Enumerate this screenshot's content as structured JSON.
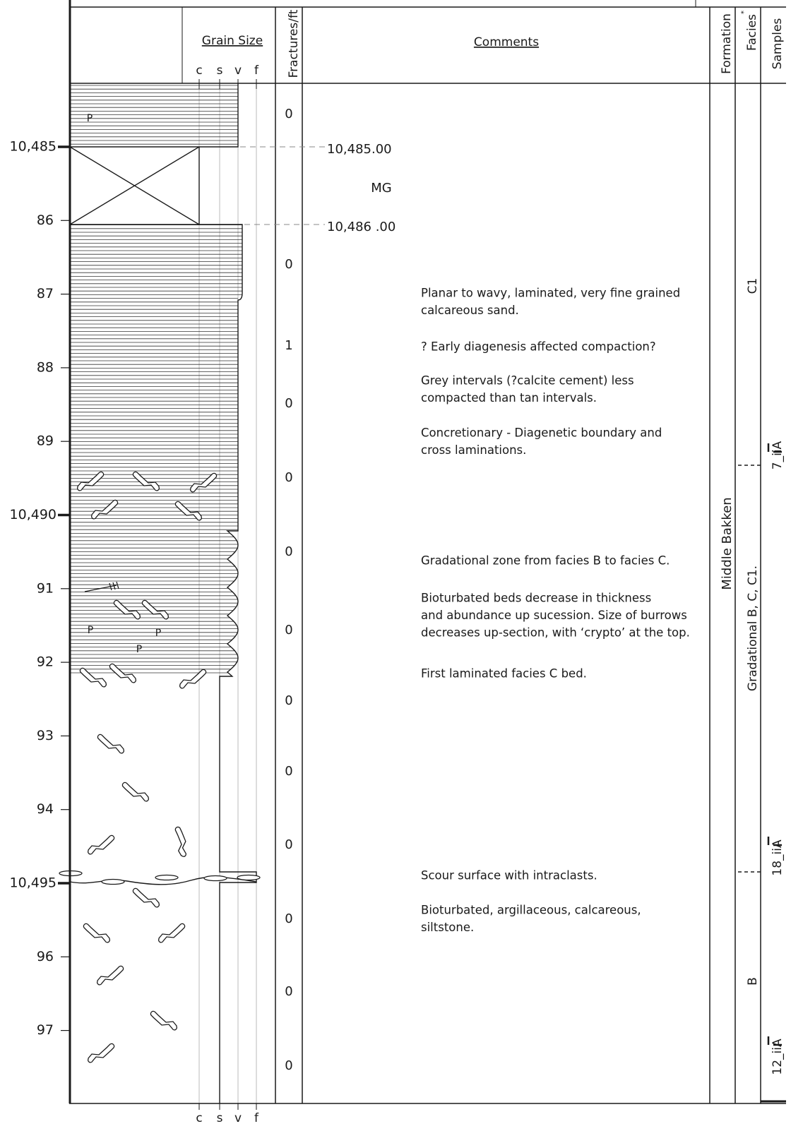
{
  "header": {
    "grain_size": "Grain Size",
    "grain_classes": [
      "c",
      "s",
      "v",
      "f"
    ],
    "fractures": "Fractures/ft",
    "comments": "Comments",
    "formation": "Formation",
    "facies": "Facies",
    "facies_mark": "*",
    "samples": "Samples"
  },
  "depth_labels": [
    "10,485",
    "86",
    "87",
    "88",
    "89",
    "10,490",
    "91",
    "92",
    "93",
    "94",
    "10,495",
    "96",
    "97"
  ],
  "fractures": [
    0,
    0,
    1,
    0,
    0,
    0,
    0,
    0,
    0,
    0,
    0,
    0,
    0
  ],
  "core_gap": {
    "top": "10,485.00",
    "label": "MG",
    "bottom": "10,486 .00"
  },
  "lithology_labels": [
    "P",
    "P",
    "P",
    "P"
  ],
  "comments": [
    [
      "Planar to wavy, laminated, very fine grained",
      "calcareous sand."
    ],
    [
      "? Early diagenesis affected compaction?"
    ],
    [
      "Grey intervals (?calcite cement) less",
      "compacted than tan intervals."
    ],
    [
      "Concretionary - Diagenetic boundary and",
      "cross laminations."
    ],
    [
      "Gradational zone from facies B to facies C."
    ],
    [
      "Bioturbated beds decrease in thickness",
      "and abundance up sucession. Size of burrows",
      "decreases up-section, with ‘crypto’ at the top."
    ],
    [
      "First laminated facies C bed."
    ],
    [
      "Scour surface with intraclasts."
    ],
    [
      "Bioturbated, argillaceous, calcareous,",
      "siltstone."
    ]
  ],
  "formation": "Middle Bakken",
  "facies": [
    "C1",
    "Gradational B, C, C1.",
    "B"
  ],
  "samples": [
    "7_iiA",
    "18_iiA",
    "12_iiA"
  ]
}
